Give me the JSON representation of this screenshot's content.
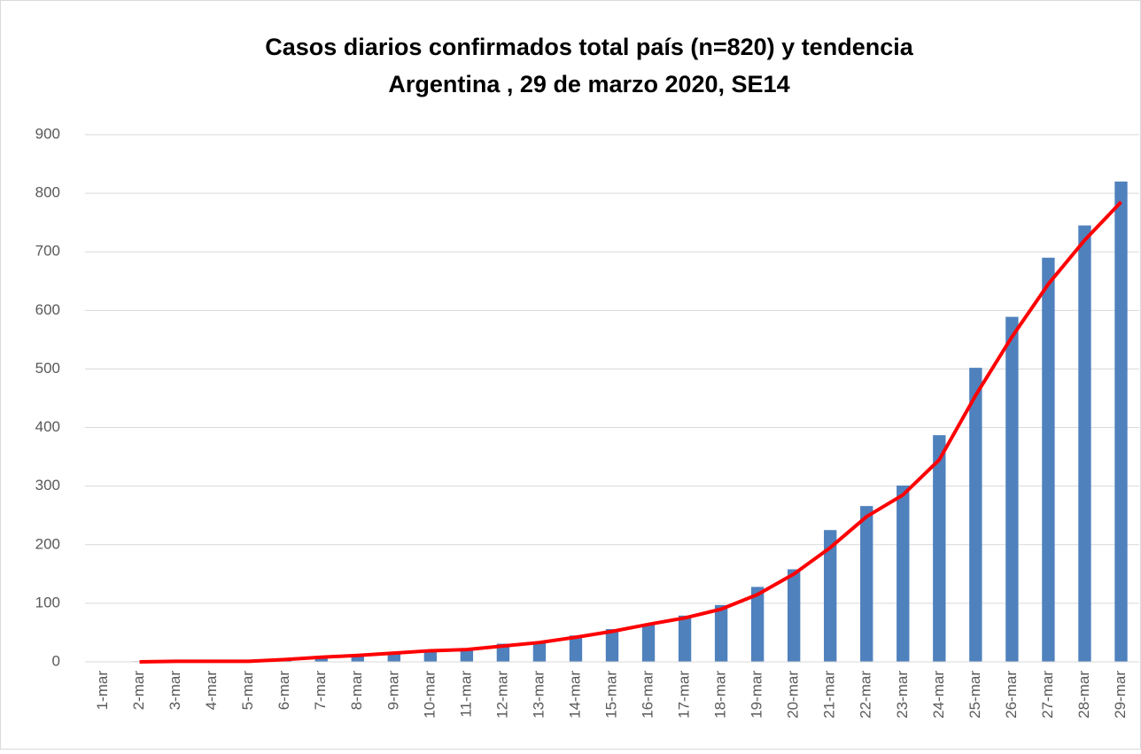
{
  "chart_data": {
    "type": "bar",
    "title": "Casos diarios confirmados total país (n=820) y tendencia",
    "subtitle": "Argentina , 29 de marzo 2020, SE14",
    "categories": [
      "1-mar",
      "2-mar",
      "3-mar",
      "4-mar",
      "5-mar",
      "6-mar",
      "7-mar",
      "8-mar",
      "9-mar",
      "10-mar",
      "11-mar",
      "12-mar",
      "13-mar",
      "14-mar",
      "15-mar",
      "16-mar",
      "17-mar",
      "18-mar",
      "19-mar",
      "20-mar",
      "21-mar",
      "22-mar",
      "23-mar",
      "24-mar",
      "25-mar",
      "26-mar",
      "27-mar",
      "28-mar",
      "29-mar"
    ],
    "series": [
      {
        "type": "bar",
        "color": "#4f81bd",
        "values": [
          0,
          1,
          1,
          1,
          1,
          2,
          8,
          12,
          17,
          19,
          21,
          31,
          34,
          45,
          56,
          65,
          79,
          97,
          128,
          158,
          225,
          266,
          301,
          387,
          502,
          589,
          690,
          745,
          820
        ]
      },
      {
        "type": "line",
        "color": "#ff0000",
        "values": [
          null,
          0,
          1,
          1,
          1,
          4,
          8,
          11,
          15,
          19,
          21,
          27,
          33,
          42,
          52,
          64,
          75,
          90,
          115,
          150,
          195,
          248,
          285,
          345,
          455,
          555,
          645,
          720,
          785
        ]
      }
    ],
    "ylim": [
      0,
      900
    ],
    "yticks": [
      0,
      100,
      200,
      300,
      400,
      500,
      600,
      700,
      800,
      900
    ],
    "grid": true
  }
}
